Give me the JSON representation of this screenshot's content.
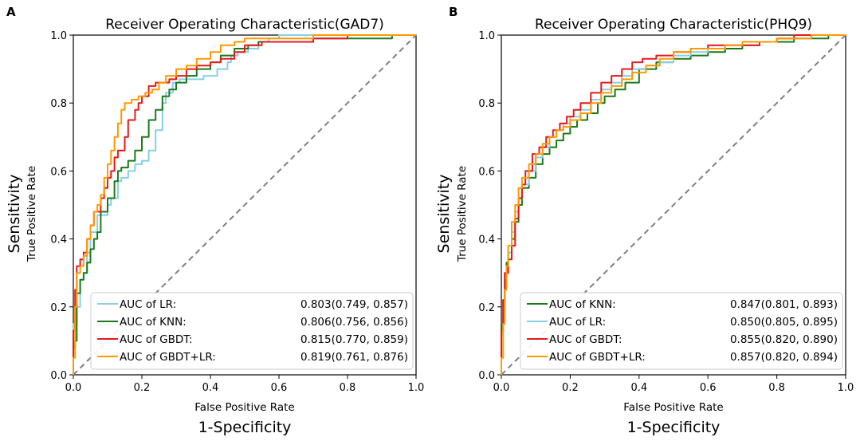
{
  "panels": [
    {
      "letter": "A",
      "title": "Receiver Operating Characteristic(GAD7)"
    },
    {
      "letter": "B",
      "title": "Receiver Operating Characteristic(PHQ9)"
    }
  ],
  "chart_data": [
    {
      "type": "line",
      "title": "Receiver Operating Characteristic(GAD7)",
      "xlabel": "False Positive Rate",
      "xlabel2": "1-Specificity",
      "ylabel": "True Positive Rate",
      "ylabel2": "Sensitivity",
      "xlim": [
        0,
        1
      ],
      "ylim": [
        0,
        1
      ],
      "xticks": [
        "0.0",
        "0.2",
        "0.4",
        "0.6",
        "0.8",
        "1.0"
      ],
      "yticks": [
        "0.0",
        "0.2",
        "0.4",
        "0.6",
        "0.8",
        "1.0"
      ],
      "legend_position": "lower-right",
      "series": [
        {
          "name": "AUC of LR:",
          "auc": "0.803(0.749, 0.857)",
          "color": "#87ceeb",
          "x": [
            0,
            0.005,
            0.01,
            0.01,
            0.02,
            0.02,
            0.03,
            0.04,
            0.05,
            0.07,
            0.09,
            0.1,
            0.11,
            0.13,
            0.14,
            0.16,
            0.18,
            0.2,
            0.22,
            0.24,
            0.26,
            0.27,
            0.29,
            0.31,
            0.34,
            0.38,
            0.42,
            0.45,
            0.46,
            0.48,
            0.51,
            0.54,
            0.57,
            0.6,
            0.65,
            0.73,
            0.8,
            0.9,
            1.0
          ],
          "y": [
            0,
            0.15,
            0.16,
            0.18,
            0.2,
            0.26,
            0.28,
            0.3,
            0.36,
            0.42,
            0.47,
            0.47,
            0.5,
            0.52,
            0.57,
            0.58,
            0.6,
            0.62,
            0.63,
            0.66,
            0.72,
            0.8,
            0.83,
            0.86,
            0.87,
            0.87,
            0.88,
            0.9,
            0.92,
            0.94,
            0.95,
            0.96,
            0.98,
            0.99,
            1.0,
            1.0,
            1.0,
            1.0,
            1.0
          ]
        },
        {
          "name": "AUC of KNN:",
          "auc": "0.806(0.756, 0.856)",
          "color": "#1a7a1a",
          "x": [
            0,
            0.005,
            0.01,
            0.01,
            0.02,
            0.03,
            0.04,
            0.05,
            0.06,
            0.07,
            0.08,
            0.1,
            0.12,
            0.13,
            0.14,
            0.16,
            0.18,
            0.2,
            0.22,
            0.24,
            0.26,
            0.28,
            0.3,
            0.33,
            0.36,
            0.4,
            0.43,
            0.47,
            0.51,
            0.54,
            0.57,
            0.6,
            0.7,
            0.8,
            0.93,
            1.0
          ],
          "y": [
            0,
            0.08,
            0.1,
            0.15,
            0.24,
            0.28,
            0.3,
            0.33,
            0.37,
            0.4,
            0.42,
            0.48,
            0.52,
            0.57,
            0.6,
            0.61,
            0.63,
            0.66,
            0.7,
            0.75,
            0.78,
            0.82,
            0.84,
            0.86,
            0.88,
            0.9,
            0.92,
            0.94,
            0.96,
            0.97,
            0.98,
            0.98,
            0.98,
            0.99,
            0.99,
            1.0
          ]
        },
        {
          "name": "AUC of GBDT:",
          "auc": "0.815(0.770, 0.859)",
          "color": "#e41a1c",
          "x": [
            0,
            0.005,
            0.01,
            0.02,
            0.03,
            0.04,
            0.05,
            0.06,
            0.08,
            0.09,
            0.1,
            0.11,
            0.12,
            0.13,
            0.15,
            0.16,
            0.18,
            0.19,
            0.2,
            0.22,
            0.24,
            0.26,
            0.28,
            0.3,
            0.33,
            0.36,
            0.4,
            0.43,
            0.47,
            0.5,
            0.55,
            0.6,
            0.7,
            0.8,
            0.9,
            1.0
          ],
          "y": [
            0,
            0.13,
            0.25,
            0.32,
            0.34,
            0.36,
            0.4,
            0.44,
            0.48,
            0.52,
            0.55,
            0.58,
            0.6,
            0.64,
            0.66,
            0.7,
            0.75,
            0.78,
            0.8,
            0.82,
            0.85,
            0.86,
            0.86,
            0.87,
            0.88,
            0.9,
            0.91,
            0.92,
            0.93,
            0.95,
            0.97,
            0.98,
            0.98,
            0.99,
            1.0,
            1.0
          ]
        },
        {
          "name": "AUC of GBDT+LR:",
          "auc": "0.819(0.761, 0.876)",
          "color": "#ff9900",
          "x": [
            0,
            0.005,
            0.01,
            0.02,
            0.03,
            0.04,
            0.05,
            0.06,
            0.07,
            0.08,
            0.09,
            0.1,
            0.11,
            0.12,
            0.13,
            0.14,
            0.15,
            0.17,
            0.19,
            0.21,
            0.23,
            0.25,
            0.27,
            0.3,
            0.33,
            0.36,
            0.4,
            0.43,
            0.47,
            0.5,
            0.55,
            0.6,
            0.7,
            0.8,
            0.9,
            1.0
          ],
          "y": [
            0,
            0.05,
            0.2,
            0.3,
            0.32,
            0.35,
            0.4,
            0.44,
            0.48,
            0.5,
            0.53,
            0.58,
            0.62,
            0.66,
            0.7,
            0.74,
            0.78,
            0.8,
            0.81,
            0.82,
            0.83,
            0.84,
            0.86,
            0.88,
            0.9,
            0.91,
            0.93,
            0.95,
            0.97,
            0.98,
            0.99,
            0.99,
            0.99,
            1.0,
            1.0,
            1.0
          ]
        }
      ]
    },
    {
      "type": "line",
      "title": "Receiver Operating Characteristic(PHQ9)",
      "xlabel": "False Positive Rate",
      "xlabel2": "1-Specificity",
      "ylabel": "True Positive Rate",
      "ylabel2": "Sensitivity",
      "xlim": [
        0,
        1
      ],
      "ylim": [
        0,
        1
      ],
      "xticks": [
        "0.0",
        "0.2",
        "0.4",
        "0.6",
        "0.8",
        "1.0"
      ],
      "yticks": [
        "0.0",
        "0.2",
        "0.4",
        "0.6",
        "0.8",
        "1.0"
      ],
      "legend_position": "lower-right",
      "series": [
        {
          "name": "AUC of KNN:",
          "auc": "0.847(0.801, 0.893)",
          "color": "#1a7a1a",
          "x": [
            0,
            0.005,
            0.01,
            0.015,
            0.02,
            0.03,
            0.04,
            0.05,
            0.06,
            0.08,
            0.1,
            0.12,
            0.14,
            0.16,
            0.18,
            0.2,
            0.22,
            0.25,
            0.28,
            0.3,
            0.33,
            0.36,
            0.4,
            0.45,
            0.5,
            0.55,
            0.6,
            0.65,
            0.7,
            0.75,
            0.8,
            0.85,
            0.9,
            0.95,
            1.0
          ],
          "y": [
            0,
            0.15,
            0.22,
            0.28,
            0.33,
            0.36,
            0.4,
            0.45,
            0.5,
            0.55,
            0.58,
            0.62,
            0.65,
            0.67,
            0.69,
            0.71,
            0.73,
            0.75,
            0.77,
            0.8,
            0.82,
            0.84,
            0.86,
            0.9,
            0.92,
            0.93,
            0.94,
            0.95,
            0.96,
            0.97,
            0.98,
            0.98,
            0.99,
            0.99,
            1.0
          ]
        },
        {
          "name": "AUC of LR:",
          "auc": "0.850(0.805, 0.895)",
          "color": "#87ceeb",
          "x": [
            0,
            0.005,
            0.01,
            0.02,
            0.03,
            0.04,
            0.05,
            0.06,
            0.08,
            0.1,
            0.12,
            0.14,
            0.16,
            0.18,
            0.2,
            0.23,
            0.26,
            0.29,
            0.32,
            0.35,
            0.38,
            0.42,
            0.46,
            0.5,
            0.55,
            0.6,
            0.65,
            0.7,
            0.75,
            0.8,
            0.85,
            0.9,
            1.0
          ],
          "y": [
            0,
            0.12,
            0.2,
            0.3,
            0.36,
            0.42,
            0.48,
            0.52,
            0.56,
            0.6,
            0.64,
            0.67,
            0.7,
            0.72,
            0.74,
            0.76,
            0.78,
            0.81,
            0.84,
            0.86,
            0.88,
            0.9,
            0.91,
            0.92,
            0.94,
            0.95,
            0.96,
            0.97,
            0.97,
            0.98,
            0.99,
            0.99,
            1.0
          ]
        },
        {
          "name": "AUC of GBDT:",
          "auc": "0.855(0.820, 0.890)",
          "color": "#e41a1c",
          "x": [
            0,
            0.005,
            0.01,
            0.02,
            0.03,
            0.04,
            0.05,
            0.06,
            0.07,
            0.09,
            0.11,
            0.13,
            0.15,
            0.17,
            0.19,
            0.21,
            0.23,
            0.26,
            0.29,
            0.32,
            0.35,
            0.38,
            0.41,
            0.45,
            0.5,
            0.55,
            0.6,
            0.65,
            0.7,
            0.75,
            0.8,
            0.85,
            0.9,
            1.0
          ],
          "y": [
            0,
            0.13,
            0.22,
            0.3,
            0.34,
            0.38,
            0.46,
            0.52,
            0.56,
            0.6,
            0.65,
            0.67,
            0.7,
            0.72,
            0.74,
            0.76,
            0.78,
            0.8,
            0.83,
            0.86,
            0.88,
            0.9,
            0.92,
            0.93,
            0.94,
            0.95,
            0.96,
            0.97,
            0.97,
            0.97,
            0.98,
            0.99,
            1.0,
            1.0
          ]
        },
        {
          "name": "AUC of GBDT+LR:",
          "auc": "0.857(0.820, 0.894)",
          "color": "#ff9900",
          "x": [
            0,
            0.005,
            0.01,
            0.015,
            0.02,
            0.03,
            0.04,
            0.05,
            0.06,
            0.08,
            0.1,
            0.12,
            0.14,
            0.16,
            0.18,
            0.2,
            0.23,
            0.26,
            0.29,
            0.32,
            0.35,
            0.38,
            0.42,
            0.46,
            0.5,
            0.55,
            0.6,
            0.65,
            0.7,
            0.75,
            0.8,
            0.85,
            0.9,
            0.95,
            1.0
          ],
          "y": [
            0,
            0.05,
            0.15,
            0.25,
            0.32,
            0.38,
            0.45,
            0.5,
            0.55,
            0.58,
            0.62,
            0.65,
            0.68,
            0.7,
            0.72,
            0.73,
            0.75,
            0.77,
            0.8,
            0.83,
            0.85,
            0.87,
            0.89,
            0.91,
            0.93,
            0.95,
            0.96,
            0.96,
            0.97,
            0.98,
            0.98,
            0.99,
            0.99,
            1.0,
            1.0
          ]
        }
      ]
    }
  ]
}
